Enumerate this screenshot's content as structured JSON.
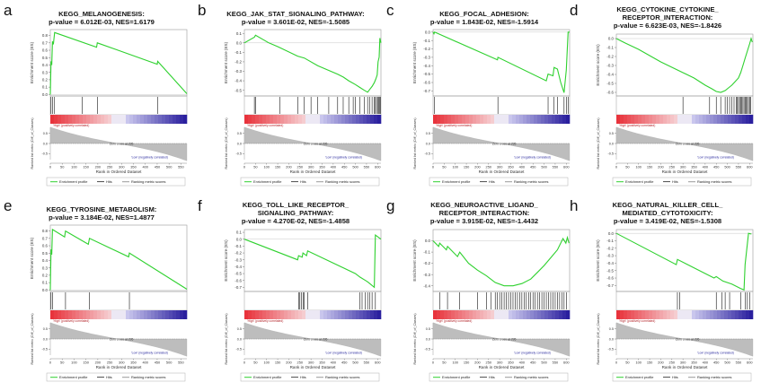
{
  "figure": {
    "x_axis_label": "Rank in Ordered Dataset",
    "es_axis_label": "Enrichment score (ES)",
    "metric_axis_label": "Ranked list metric (Diff_of_Classes)",
    "high_label": "'High' (positively correlated)",
    "low_label": "'Low' (negatively correlated)",
    "legend": {
      "profile": "Enrichment profile",
      "hits": "Hits",
      "ranking": "Ranking metric scores"
    },
    "colors": {
      "profile": "#2fd12f",
      "hits": "#000000",
      "ranking": "#bdbdbd",
      "high": "#e8333c",
      "low": "#2a1f9e",
      "zero_line": "#888888"
    }
  },
  "chart_data": [
    {
      "letter": "a",
      "type": "line",
      "title": "KEGG_MELANOGENESIS:",
      "stats": "p-value = 6.012E-03, NES=1.6179",
      "xlabel": "Rank in Ordered Dataset",
      "ylabel": "Enrichment score (ES)",
      "x_ticks": [
        0,
        50,
        100,
        150,
        200,
        250,
        300,
        350,
        400,
        450,
        500,
        550
      ],
      "x_range": [
        0,
        575
      ],
      "y_ticks": [
        0.0,
        0.1,
        0.2,
        0.3,
        0.4,
        0.5,
        0.6,
        0.7,
        0.8
      ],
      "y_range": [
        -0.02,
        0.88
      ],
      "zero_cross": "Zero cross at 295",
      "metric_ticks": [
        0.5,
        0.0,
        -0.5
      ],
      "metric_range": [
        -0.8,
        0.8
      ],
      "profile": [
        [
          0,
          0
        ],
        [
          3,
          0.45
        ],
        [
          6,
          0.4
        ],
        [
          9,
          0.72
        ],
        [
          13,
          0.68
        ],
        [
          18,
          0.84
        ],
        [
          195,
          0.64
        ],
        [
          198,
          0.7
        ],
        [
          450,
          0.41
        ],
        [
          452,
          0.45
        ],
        [
          575,
          0.01
        ]
      ],
      "hits": [
        3,
        9,
        18,
        135,
        198,
        452
      ]
    },
    {
      "letter": "b",
      "type": "line",
      "title": "KEGG_JAK_STAT_SIGNALING_PATHWAY:",
      "stats": "p-value = 3.601E-02, NES=-1.5085",
      "xlabel": "Rank in Ordered Dataset",
      "ylabel": "Enrichment score (ES)",
      "x_ticks": [
        0,
        50,
        100,
        150,
        200,
        250,
        300,
        350,
        400,
        450,
        500,
        550,
        600
      ],
      "x_range": [
        0,
        615
      ],
      "y_ticks": [
        0.1,
        0.0,
        -0.1,
        -0.2,
        -0.3,
        -0.4,
        -0.5
      ],
      "y_range": [
        -0.56,
        0.14
      ],
      "zero_cross": "Zero cross at 295",
      "metric_ticks": [
        0.5,
        0.0,
        -0.5
      ],
      "metric_range": [
        -0.8,
        0.8
      ],
      "profile": [
        [
          0,
          0
        ],
        [
          45,
          0.06
        ],
        [
          50,
          0.08
        ],
        [
          110,
          0.0
        ],
        [
          150,
          -0.04
        ],
        [
          160,
          -0.05
        ],
        [
          240,
          -0.14
        ],
        [
          270,
          -0.16
        ],
        [
          330,
          -0.24
        ],
        [
          420,
          -0.33
        ],
        [
          445,
          -0.36
        ],
        [
          470,
          -0.4
        ],
        [
          500,
          -0.44
        ],
        [
          520,
          -0.47
        ],
        [
          540,
          -0.5
        ],
        [
          555,
          -0.52
        ],
        [
          565,
          -0.49
        ],
        [
          575,
          -0.46
        ],
        [
          585,
          -0.42
        ],
        [
          592,
          -0.38
        ],
        [
          598,
          -0.34
        ],
        [
          602,
          -0.2
        ],
        [
          607,
          -0.15
        ],
        [
          610,
          0.05
        ],
        [
          615,
          0.0
        ]
      ],
      "hits": [
        45,
        50,
        160,
        240,
        270,
        300,
        330,
        380,
        420,
        445,
        470,
        490,
        500,
        520,
        540,
        555,
        565,
        575,
        585,
        590,
        595,
        600,
        605,
        608,
        612
      ]
    },
    {
      "letter": "c",
      "type": "line",
      "title": "KEGG_FOCAL_ADHESION:",
      "stats": "p-value = 1.843E-02, NES=-1.5914",
      "xlabel": "Rank in Ordered Dataset",
      "ylabel": "Enrichment score (ES)",
      "x_ticks": [
        0,
        50,
        100,
        150,
        200,
        250,
        300,
        350,
        400,
        450,
        500,
        550,
        600
      ],
      "x_range": [
        0,
        615
      ],
      "y_ticks": [
        0.0,
        -0.1,
        -0.2,
        -0.3,
        -0.4,
        -0.5,
        -0.6,
        -0.7
      ],
      "y_range": [
        -0.76,
        0.03
      ],
      "zero_cross": "Zero cross at 295",
      "metric_ticks": [
        0.5,
        0.0,
        -0.5
      ],
      "metric_range": [
        -0.8,
        0.8
      ],
      "profile": [
        [
          0,
          0
        ],
        [
          4,
          -0.02
        ],
        [
          7,
          0.0
        ],
        [
          290,
          -0.33
        ],
        [
          292,
          -0.3
        ],
        [
          510,
          -0.58
        ],
        [
          518,
          -0.5
        ],
        [
          540,
          -0.52
        ],
        [
          545,
          -0.42
        ],
        [
          560,
          -0.44
        ],
        [
          575,
          -0.6
        ],
        [
          590,
          -0.72
        ],
        [
          600,
          -0.45
        ],
        [
          608,
          0.0
        ],
        [
          615,
          0.0
        ]
      ],
      "hits": [
        7,
        292,
        518,
        545,
        560,
        590,
        600,
        608
      ]
    },
    {
      "letter": "d",
      "type": "line",
      "title": "KEGG_CYTOKINE_CYTOKINE_\nRECEPTOR_INTERACTION:",
      "stats": "p-value = 6.623E-03, NES=-1.8426",
      "xlabel": "Rank in Ordered Dataset",
      "ylabel": "Enrichment score (ES)",
      "x_ticks": [
        0,
        50,
        100,
        150,
        200,
        250,
        300,
        350,
        400,
        450,
        500,
        550,
        600
      ],
      "x_range": [
        0,
        615
      ],
      "y_ticks": [
        0.0,
        -0.1,
        -0.2,
        -0.3,
        -0.4,
        -0.5,
        -0.6
      ],
      "y_range": [
        -0.64,
        0.05
      ],
      "zero_cross": "Zero cross at 295",
      "metric_ticks": [
        0.5,
        0.0,
        -0.5
      ],
      "metric_range": [
        -0.8,
        0.8
      ],
      "profile": [
        [
          0,
          0
        ],
        [
          40,
          -0.05
        ],
        [
          100,
          -0.12
        ],
        [
          200,
          -0.26
        ],
        [
          300,
          -0.38
        ],
        [
          350,
          -0.44
        ],
        [
          400,
          -0.52
        ],
        [
          430,
          -0.56
        ],
        [
          450,
          -0.59
        ],
        [
          470,
          -0.6
        ],
        [
          490,
          -0.58
        ],
        [
          505,
          -0.55
        ],
        [
          520,
          -0.52
        ],
        [
          535,
          -0.48
        ],
        [
          550,
          -0.44
        ],
        [
          560,
          -0.38
        ],
        [
          570,
          -0.3
        ],
        [
          580,
          -0.22
        ],
        [
          590,
          -0.14
        ],
        [
          600,
          -0.06
        ],
        [
          607,
          0.0
        ],
        [
          612,
          -0.04
        ]
      ],
      "hits": [
        300,
        420,
        450,
        470,
        490,
        500,
        510,
        520,
        530,
        540,
        545,
        550,
        555,
        560,
        565,
        570,
        575,
        580,
        585,
        590,
        595,
        600,
        605
      ]
    },
    {
      "letter": "e",
      "type": "line",
      "title": "KEGG_TYROSINE_METABOLISM:",
      "stats": "p-value = 3.184E-02, NES=1.4877",
      "xlabel": "Rank in Ordered Dataset",
      "ylabel": "Enrichment score (ES)",
      "x_ticks": [
        0,
        50,
        100,
        150,
        200,
        250,
        300,
        350,
        400,
        450,
        500,
        550
      ],
      "x_range": [
        0,
        575
      ],
      "y_ticks": [
        0.0,
        0.1,
        0.2,
        0.3,
        0.4,
        0.5,
        0.6,
        0.7,
        0.8
      ],
      "y_range": [
        -0.02,
        0.88
      ],
      "zero_cross": "Zero cross at 295",
      "metric_ticks": [
        0.5,
        0.0,
        -0.5
      ],
      "metric_range": [
        -0.8,
        0.8
      ],
      "profile": [
        [
          0,
          0
        ],
        [
          3,
          0.55
        ],
        [
          6,
          0.48
        ],
        [
          9,
          0.82
        ],
        [
          60,
          0.72
        ],
        [
          64,
          0.8
        ],
        [
          160,
          0.62
        ],
        [
          165,
          0.7
        ],
        [
          330,
          0.45
        ],
        [
          333,
          0.5
        ],
        [
          575,
          0.01
        ]
      ],
      "hits": [
        3,
        9,
        64,
        165,
        333
      ]
    },
    {
      "letter": "f",
      "type": "line",
      "title": "KEGG_TOLL_LIKE_RECEPTOR_\nSIGNALING_PATHWAY:",
      "stats": "p-value = 4.270E-02, NES=-1.4858",
      "xlabel": "Rank in Ordered Dataset",
      "ylabel": "Enrichment score (ES)",
      "x_ticks": [
        0,
        50,
        100,
        150,
        200,
        250,
        300,
        350,
        400,
        450,
        500,
        550,
        600
      ],
      "x_range": [
        0,
        615
      ],
      "y_ticks": [
        0.1,
        0.0,
        -0.1,
        -0.2,
        -0.3,
        -0.4,
        -0.5,
        -0.6,
        -0.7
      ],
      "y_range": [
        -0.76,
        0.14
      ],
      "zero_cross": "Zero cross at 295",
      "metric_ticks": [
        0.5,
        0.0,
        -0.5
      ],
      "metric_range": [
        -0.8,
        0.8
      ],
      "profile": [
        [
          0,
          0
        ],
        [
          240,
          -0.3
        ],
        [
          244,
          -0.24
        ],
        [
          260,
          -0.26
        ],
        [
          264,
          -0.2
        ],
        [
          280,
          -0.24
        ],
        [
          285,
          -0.17
        ],
        [
          500,
          -0.5
        ],
        [
          520,
          -0.55
        ],
        [
          545,
          -0.6
        ],
        [
          555,
          -0.62
        ],
        [
          570,
          -0.66
        ],
        [
          585,
          -0.7
        ],
        [
          590,
          0.06
        ],
        [
          615,
          0.0
        ]
      ],
      "hits": [
        244,
        250,
        256,
        264,
        270,
        285,
        520,
        530,
        545,
        555,
        565,
        575,
        590
      ]
    },
    {
      "letter": "g",
      "type": "line",
      "title": "KEGG_NEUROACTIVE_LIGAND_\nRECEPTOR_INTERACTION:",
      "stats": "p-value = 3.915E-02, NES=-1.4432",
      "xlabel": "Rank in Ordered Dataset",
      "ylabel": "Enrichment score (ES)",
      "x_ticks": [
        0,
        50,
        100,
        150,
        200,
        250,
        300,
        350,
        400,
        450,
        500,
        550,
        600
      ],
      "x_range": [
        0,
        615
      ],
      "y_ticks": [
        0.0,
        -0.1,
        -0.2,
        -0.3,
        -0.4
      ],
      "y_range": [
        -0.45,
        0.1
      ],
      "zero_cross": "Zero cross at 295",
      "metric_ticks": [
        0.5,
        0.0,
        -0.5
      ],
      "metric_range": [
        -0.8,
        0.8
      ],
      "profile": [
        [
          0,
          0
        ],
        [
          25,
          -0.05
        ],
        [
          30,
          -0.02
        ],
        [
          60,
          -0.08
        ],
        [
          65,
          -0.05
        ],
        [
          110,
          -0.14
        ],
        [
          120,
          -0.1
        ],
        [
          160,
          -0.2
        ],
        [
          200,
          -0.26
        ],
        [
          240,
          -0.31
        ],
        [
          280,
          -0.37
        ],
        [
          320,
          -0.4
        ],
        [
          360,
          -0.4
        ],
        [
          400,
          -0.38
        ],
        [
          440,
          -0.34
        ],
        [
          470,
          -0.28
        ],
        [
          500,
          -0.22
        ],
        [
          530,
          -0.15
        ],
        [
          560,
          -0.08
        ],
        [
          585,
          0.02
        ],
        [
          598,
          -0.02
        ],
        [
          605,
          0.03
        ],
        [
          612,
          -0.02
        ]
      ],
      "hits": [
        30,
        65,
        120,
        200,
        240,
        260,
        280,
        290,
        300,
        310,
        320,
        330,
        340,
        350,
        360,
        370,
        380,
        390,
        400,
        410,
        420,
        430,
        440,
        450,
        460,
        470,
        480,
        490,
        500,
        510,
        520,
        530,
        540,
        550,
        560,
        570,
        580,
        590,
        600
      ]
    },
    {
      "letter": "h",
      "type": "line",
      "title": "KEGG_NATURAL_KILLER_CELL_\nMEDIATED_CYTOTOXICITY:",
      "stats": "p-value = 3.419E-02, NES=-1.5308",
      "xlabel": "Rank in Ordered Dataset",
      "ylabel": "Enrichment score (ES)",
      "x_ticks": [
        0,
        50,
        100,
        150,
        200,
        250,
        300,
        350,
        400,
        450,
        500,
        550,
        600
      ],
      "x_range": [
        0,
        615
      ],
      "y_ticks": [
        0.0,
        -0.1,
        -0.2,
        -0.3,
        -0.4,
        -0.5,
        -0.6,
        -0.7
      ],
      "y_range": [
        -0.78,
        0.05
      ],
      "zero_cross": "Zero cross at 295",
      "metric_ticks": [
        0.5,
        0.0,
        -0.5
      ],
      "metric_range": [
        -0.8,
        0.8
      ],
      "profile": [
        [
          0,
          0
        ],
        [
          270,
          -0.42
        ],
        [
          275,
          -0.35
        ],
        [
          440,
          -0.6
        ],
        [
          450,
          -0.58
        ],
        [
          480,
          -0.64
        ],
        [
          520,
          -0.68
        ],
        [
          560,
          -0.74
        ],
        [
          575,
          -0.76
        ],
        [
          580,
          -0.42
        ],
        [
          595,
          0.0
        ],
        [
          608,
          -0.01
        ]
      ],
      "hits": [
        275,
        285,
        450,
        475,
        490,
        510,
        560,
        580,
        590,
        600
      ]
    }
  ]
}
